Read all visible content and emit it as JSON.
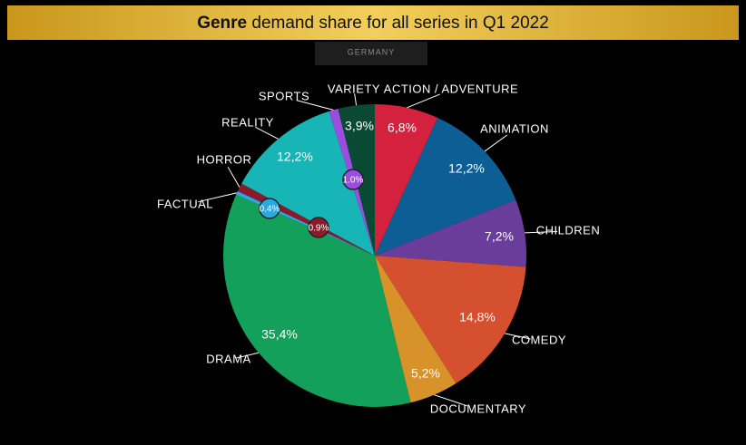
{
  "chart_data": {
    "type": "pie",
    "title": "Genre demand share for all series in Q1 2022",
    "subtitle": "GERMANY",
    "categories": [
      "ACTION / ADVENTURE",
      "ANIMATION",
      "CHILDREN",
      "COMEDY",
      "DOCUMENTARY",
      "DRAMA",
      "FACTUAL",
      "HORROR",
      "REALITY",
      "SPORTS",
      "VARIETY"
    ],
    "values": [
      6.8,
      12.2,
      7.2,
      14.8,
      5.2,
      35.4,
      0.4,
      0.9,
      12.2,
      1.0,
      3.9
    ],
    "value_labels": [
      "6,8%",
      "12,2%",
      "7,2%",
      "14,8%",
      "5,2%",
      "35,4%",
      "0.4%",
      "0.9%",
      "12,2%",
      "1.0%",
      "3,9%"
    ],
    "colors": [
      "#d4213d",
      "#0e5e96",
      "#6a3d9a",
      "#d4502f",
      "#d8922a",
      "#13a05a",
      "#2aa8e0",
      "#8b1a2b",
      "#17b5b5",
      "#9b4de0",
      "#0a4a35"
    ]
  }
}
